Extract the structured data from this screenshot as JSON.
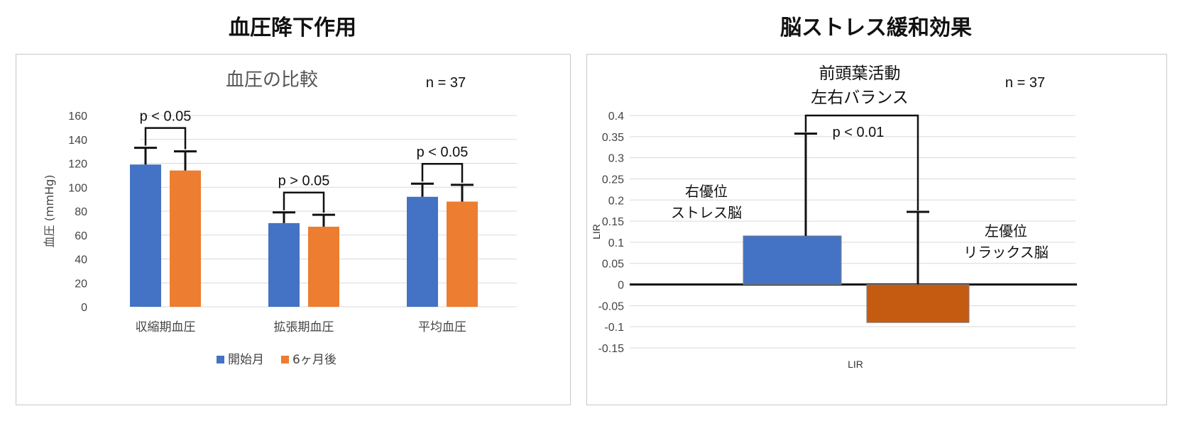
{
  "headings": {
    "left": "血圧降下作用",
    "right": "脳ストレス緩和効果"
  },
  "colors": {
    "blue": "#4472C4",
    "orange": "#ED7D31",
    "dark_orange": "#C55A11",
    "grid": "#d9d9d9"
  },
  "chart_data": [
    {
      "type": "bar",
      "title": "血圧の比較",
      "n_label": "n = 37",
      "ylabel": "血圧 (mmHg)",
      "ylim": [
        0,
        160
      ],
      "yticks": [
        0,
        20,
        40,
        60,
        80,
        100,
        120,
        140,
        160
      ],
      "categories": [
        "収縮期血圧",
        "拡張期血圧",
        "平均血圧"
      ],
      "series": [
        {
          "name": "開始月",
          "color": "#4472C4",
          "values": [
            119,
            70,
            92
          ],
          "error_upper": [
            133,
            79,
            103
          ]
        },
        {
          "name": "6ヶ月後",
          "color": "#ED7D31",
          "values": [
            114,
            67,
            88
          ],
          "error_upper": [
            130,
            77,
            102
          ]
        }
      ],
      "significance": [
        "p < 0.05",
        "p > 0.05",
        "p < 0.05"
      ],
      "grid": true,
      "legend": "bottom"
    },
    {
      "type": "bar",
      "title": [
        "前頭葉活動",
        "左右バランス"
      ],
      "n_label": "n = 37",
      "ylabel": "LIR",
      "xlabel": "LIR",
      "ylim": [
        -0.15,
        0.4
      ],
      "yticks": [
        -0.15,
        -0.1,
        -0.05,
        0,
        0.05,
        0.1,
        0.15,
        0.2,
        0.25,
        0.3,
        0.35,
        0.4
      ],
      "bars": [
        {
          "label": [
            "右優位",
            "ストレス脳"
          ],
          "value": 0.115,
          "error_upper": 0.357,
          "color": "#4472C4"
        },
        {
          "label": [
            "左優位",
            "リラックス脳"
          ],
          "value": -0.09,
          "error_upper": 0.172,
          "color": "#C55A11"
        }
      ],
      "significance": "p < 0.01",
      "grid": true
    }
  ]
}
